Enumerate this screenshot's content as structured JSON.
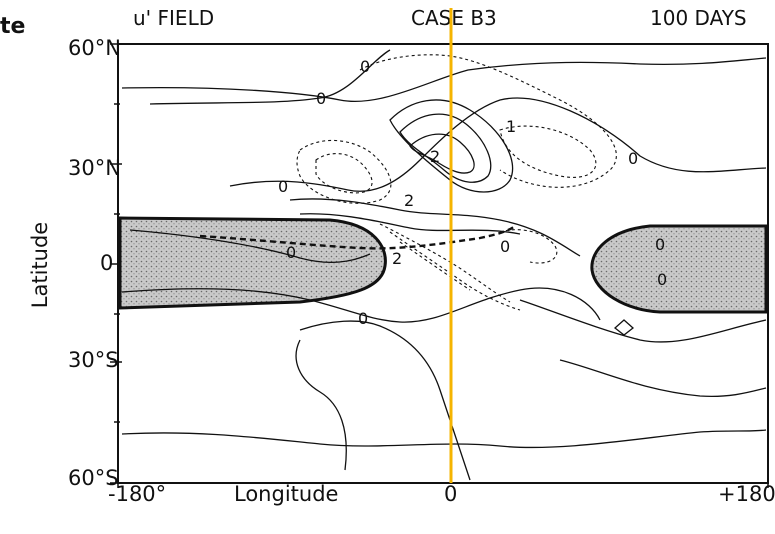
{
  "fragment": "te",
  "header": {
    "left": "u' FIELD",
    "center": "CASE B3",
    "right": "100 DAYS"
  },
  "axes": {
    "ylabel": "Latitude",
    "xlabel": "Longitude",
    "yticks": [
      "60°N",
      "30°N",
      "0",
      "30°S",
      "60°S"
    ],
    "xticks": [
      "-180°",
      "0",
      "+180°"
    ]
  },
  "contour_labels": [
    "0",
    "0",
    "0",
    "0",
    "1",
    "2",
    "0",
    "2",
    "2",
    "0",
    "0",
    "0",
    "0"
  ],
  "colors": {
    "meridian": "#f5b400",
    "ink": "#111111",
    "shade": "#c8c8c8"
  }
}
